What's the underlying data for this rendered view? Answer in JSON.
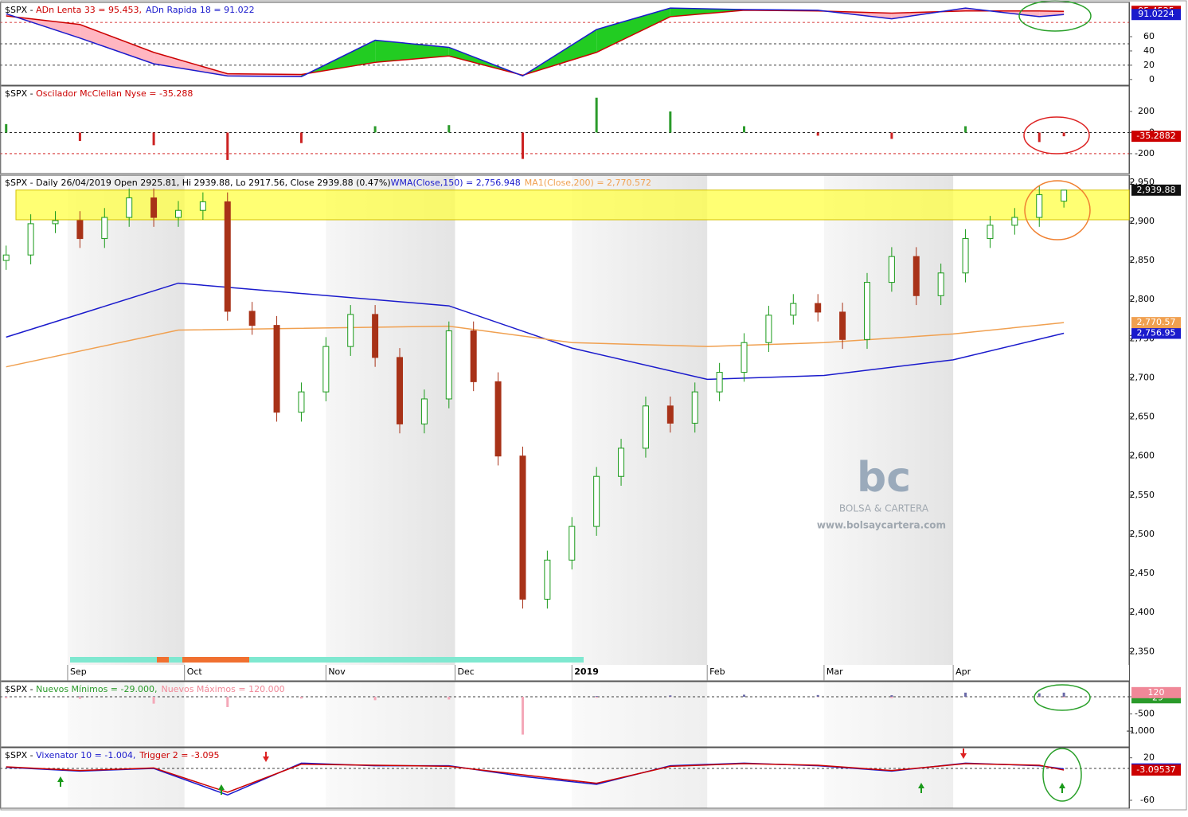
{
  "chart_data": [
    {
      "type": "area_lines",
      "title": "$SPX - ",
      "xlim": [
        -1,
        182.6
      ],
      "ylim": [
        -8,
        108
      ],
      "yticks": [
        0,
        20,
        40,
        60
      ],
      "ref_lines": [
        20,
        50,
        80
      ],
      "ref_line_colors": [
        "#000000",
        "#000000",
        "#cc0000"
      ],
      "fill_up": "#22cc22",
      "fill_down": "#ffb6c1",
      "series": [
        {
          "name": "ADn Lenta 33 = 95.453,",
          "color": "#cc0000",
          "x": [
            0,
            12,
            24,
            36,
            48,
            60,
            72,
            84,
            96,
            108,
            120,
            132,
            144,
            156,
            168,
            172
          ],
          "values": [
            89,
            77,
            38,
            8,
            7,
            24,
            33,
            6,
            38,
            88,
            97,
            96,
            93,
            96,
            96,
            95.4525
          ],
          "last_label": "95.4525"
        },
        {
          "name": "ADn Rapida 18 = 91.022",
          "color": "#1a1acc",
          "x": [
            0,
            12,
            24,
            36,
            48,
            60,
            72,
            84,
            96,
            108,
            120,
            132,
            144,
            156,
            168,
            172
          ],
          "values": [
            92,
            58,
            22,
            5,
            4,
            55,
            45,
            5,
            70,
            100,
            98,
            97,
            85,
            100,
            88,
            91.0224
          ],
          "last_label": "91.0224"
        }
      ]
    },
    {
      "type": "histogram",
      "title": "$SPX - ",
      "xlim": [
        -1,
        182.6
      ],
      "ylim": [
        -389,
        441
      ],
      "yticks": [
        200,
        0,
        -200
      ],
      "ref_lines": [
        0,
        -200
      ],
      "ref_line_colors": [
        "#000000",
        "#cc0000"
      ],
      "pos_color": "#2a9a2a",
      "neg_color": "#cc2222",
      "series": [
        {
          "name": "Oscilador McClellan Nyse = -35.288",
          "color": "#cc0000",
          "x": [
            0,
            12,
            24,
            36,
            48,
            60,
            72,
            84,
            96,
            108,
            120,
            132,
            144,
            156,
            168,
            172
          ],
          "values": [
            80,
            -80,
            -120,
            -260,
            -100,
            60,
            70,
            -250,
            330,
            200,
            60,
            -30,
            -60,
            60,
            -90,
            -35.2882
          ],
          "last_label": "-35.2882"
        }
      ]
    },
    {
      "type": "candlestick",
      "title": "$SPX - Daily 26/04/2019 Open 2925.81, Hi 2939.88, Lo 2917.56, Close 2939.88 (0.47%)",
      "xlim": [
        -1,
        182.6
      ],
      "ylim": [
        2333,
        2959
      ],
      "yticks": [
        {
          "value": 2350,
          "label": "2,350"
        },
        {
          "value": 2400,
          "label": "2,400"
        },
        {
          "value": 2450,
          "label": "2,450"
        },
        {
          "value": 2500,
          "label": "2,500"
        },
        {
          "value": 2550,
          "label": "2,550"
        },
        {
          "value": 2600,
          "label": "2,600"
        },
        {
          "value": 2650,
          "label": "2,650"
        },
        {
          "value": 2700,
          "label": "2,700"
        },
        {
          "value": 2750,
          "label": "2,750"
        },
        {
          "value": 2800,
          "label": "2,800"
        },
        {
          "value": 2850,
          "label": "2,850"
        },
        {
          "value": 2900,
          "label": "2,900"
        },
        {
          "value": 2950,
          "label": "2,950"
        }
      ],
      "xticks": [
        {
          "value": 10,
          "label": "Sep"
        },
        {
          "value": 29,
          "label": "Oct"
        },
        {
          "value": 52,
          "label": "Nov"
        },
        {
          "value": 73,
          "label": "Dec"
        },
        {
          "value": 92,
          "label": "2019"
        },
        {
          "value": 114,
          "label": "Feb"
        },
        {
          "value": 133,
          "label": "Mar"
        },
        {
          "value": 154,
          "label": "Apr"
        }
      ],
      "highlight_band": [
        2902,
        2940
      ],
      "up_color": "#1a9a1a",
      "down_color": "#a83218",
      "x": [
        0,
        4,
        8,
        12,
        16,
        20,
        24,
        28,
        32,
        36,
        40,
        44,
        48,
        52,
        56,
        60,
        64,
        68,
        72,
        76,
        80,
        84,
        88,
        92,
        96,
        100,
        104,
        108,
        112,
        116,
        120,
        124,
        128,
        132,
        136,
        140,
        144,
        148,
        152,
        156,
        160,
        164,
        168,
        172
      ],
      "open": [
        2850,
        2857,
        2897,
        2901,
        2878,
        2905,
        2930,
        2905,
        2914,
        2925,
        2785,
        2767,
        2656,
        2682,
        2740,
        2781,
        2726,
        2641,
        2673,
        2760,
        2695,
        2600,
        2417,
        2467,
        2510,
        2574,
        2610,
        2664,
        2642,
        2682,
        2707,
        2745,
        2780,
        2795,
        2784,
        2749,
        2822,
        2855,
        2805,
        2834,
        2878,
        2895,
        2905,
        2925.81
      ],
      "high": [
        2869,
        2909,
        2913,
        2913,
        2917,
        2942,
        2942,
        2926,
        2937,
        2937,
        2797,
        2779,
        2694,
        2752,
        2793,
        2793,
        2738,
        2685,
        2772,
        2772,
        2707,
        2612,
        2479,
        2522,
        2586,
        2622,
        2676,
        2676,
        2694,
        2719,
        2757,
        2792,
        2807,
        2807,
        2796,
        2834,
        2867,
        2867,
        2846,
        2890,
        2907,
        2917,
        2946,
        2939.88
      ],
      "low": [
        2838,
        2845,
        2885,
        2866,
        2866,
        2893,
        2893,
        2893,
        2902,
        2773,
        2755,
        2644,
        2644,
        2670,
        2728,
        2714,
        2629,
        2629,
        2661,
        2683,
        2588,
        2405,
        2405,
        2455,
        2498,
        2562,
        2598,
        2630,
        2630,
        2670,
        2695,
        2733,
        2768,
        2772,
        2737,
        2737,
        2810,
        2793,
        2793,
        2822,
        2866,
        2883,
        2893,
        2917.56
      ],
      "close": [
        2857,
        2897,
        2901,
        2878,
        2905,
        2930,
        2905,
        2914,
        2925,
        2785,
        2767,
        2656,
        2682,
        2740,
        2781,
        2726,
        2641,
        2673,
        2760,
        2695,
        2600,
        2417,
        2467,
        2510,
        2574,
        2610,
        2664,
        2642,
        2682,
        2707,
        2745,
        2780,
        2795,
        2784,
        2749,
        2822,
        2855,
        2805,
        2834,
        2878,
        2895,
        2905,
        2934,
        2939.88
      ],
      "close_label": "2,939.88",
      "series": [
        {
          "name": "WMA(Close,150) = 2,756.948",
          "color": "#1a1acc",
          "x": [
            0,
            28,
            72,
            92,
            114,
            133,
            154,
            172
          ],
          "values": [
            2752,
            2821,
            2792,
            2738,
            2698,
            2703,
            2723,
            2756.948
          ],
          "last_label": "2,756.95"
        },
        {
          "name": "MA1(Close,200) = 2,770.572",
          "color": "#f0a050",
          "x": [
            0,
            28,
            72,
            92,
            114,
            133,
            154,
            172
          ],
          "values": [
            2714,
            2761,
            2766,
            2745,
            2740,
            2745,
            2756,
            2770.572
          ],
          "last_label": "2,770.57"
        }
      ]
    },
    {
      "type": "bars_dual",
      "title": "$SPX - ",
      "xlim": [
        -1,
        182.6
      ],
      "ylim": [
        -1458,
        440
      ],
      "yticks": [
        0,
        -500,
        {
          "value": -1000,
          "label": "-1,000"
        }
      ],
      "ref_lines": [
        0
      ],
      "ref_line_colors": [
        "#000000"
      ],
      "series": [
        {
          "name": "Nuevos Mínimos = -29.000,",
          "color": "#2a9a2a",
          "bar_color": "#f4a8b8",
          "x": [
            0,
            12,
            24,
            36,
            48,
            60,
            72,
            84,
            96,
            108,
            120,
            132,
            144,
            156,
            168,
            172
          ],
          "values": [
            -40,
            -60,
            -200,
            -300,
            -50,
            -100,
            -80,
            -1100,
            -30,
            -10,
            -5,
            -10,
            -40,
            -5,
            -20,
            -29
          ],
          "last_label": "-29"
        },
        {
          "name": "Nuevos Máximos = 120.000",
          "color": "#f08898",
          "bar_color": "#6a6aa8",
          "x": [
            0,
            12,
            24,
            36,
            48,
            60,
            72,
            84,
            96,
            108,
            120,
            132,
            144,
            156,
            168,
            172
          ],
          "values": [
            10,
            10,
            5,
            3,
            2,
            3,
            3,
            0,
            20,
            40,
            60,
            50,
            45,
            120,
            100,
            120
          ],
          "last_label": "120"
        }
      ]
    },
    {
      "type": "line",
      "title": "$SPX - ",
      "xlim": [
        -1,
        182.6
      ],
      "ylim": [
        -75,
        39
      ],
      "yticks": [
        20,
        -60
      ],
      "ref_lines": [
        0
      ],
      "ref_line_colors": [
        "#000000"
      ],
      "series": [
        {
          "name": "Vixenator 10 = -1.004,",
          "color": "#1a1acc",
          "x": [
            0,
            12,
            24,
            36,
            48,
            60,
            72,
            84,
            96,
            108,
            120,
            132,
            144,
            156,
            168,
            172
          ],
          "values": [
            2,
            -5,
            0,
            -50,
            10,
            5,
            5,
            -15,
            -30,
            5,
            10,
            5,
            -5,
            10,
            5,
            -1.00416
          ],
          "last_label": "-1.00416"
        },
        {
          "name": "Trigger 2 = -3.095",
          "color": "#cc0000",
          "x": [
            0,
            12,
            24,
            36,
            48,
            60,
            72,
            84,
            96,
            108,
            120,
            132,
            144,
            156,
            168,
            172
          ],
          "values": [
            3,
            -4,
            1,
            -45,
            8,
            6,
            4,
            -12,
            -28,
            4,
            9,
            6,
            -4,
            9,
            6,
            -3.09537
          ],
          "last_label": "-3.09537"
        }
      ]
    }
  ],
  "watermark": {
    "logo": "bc",
    "name": "BOLSA & CARTERA",
    "url": "www.bolsaycartera.com"
  }
}
